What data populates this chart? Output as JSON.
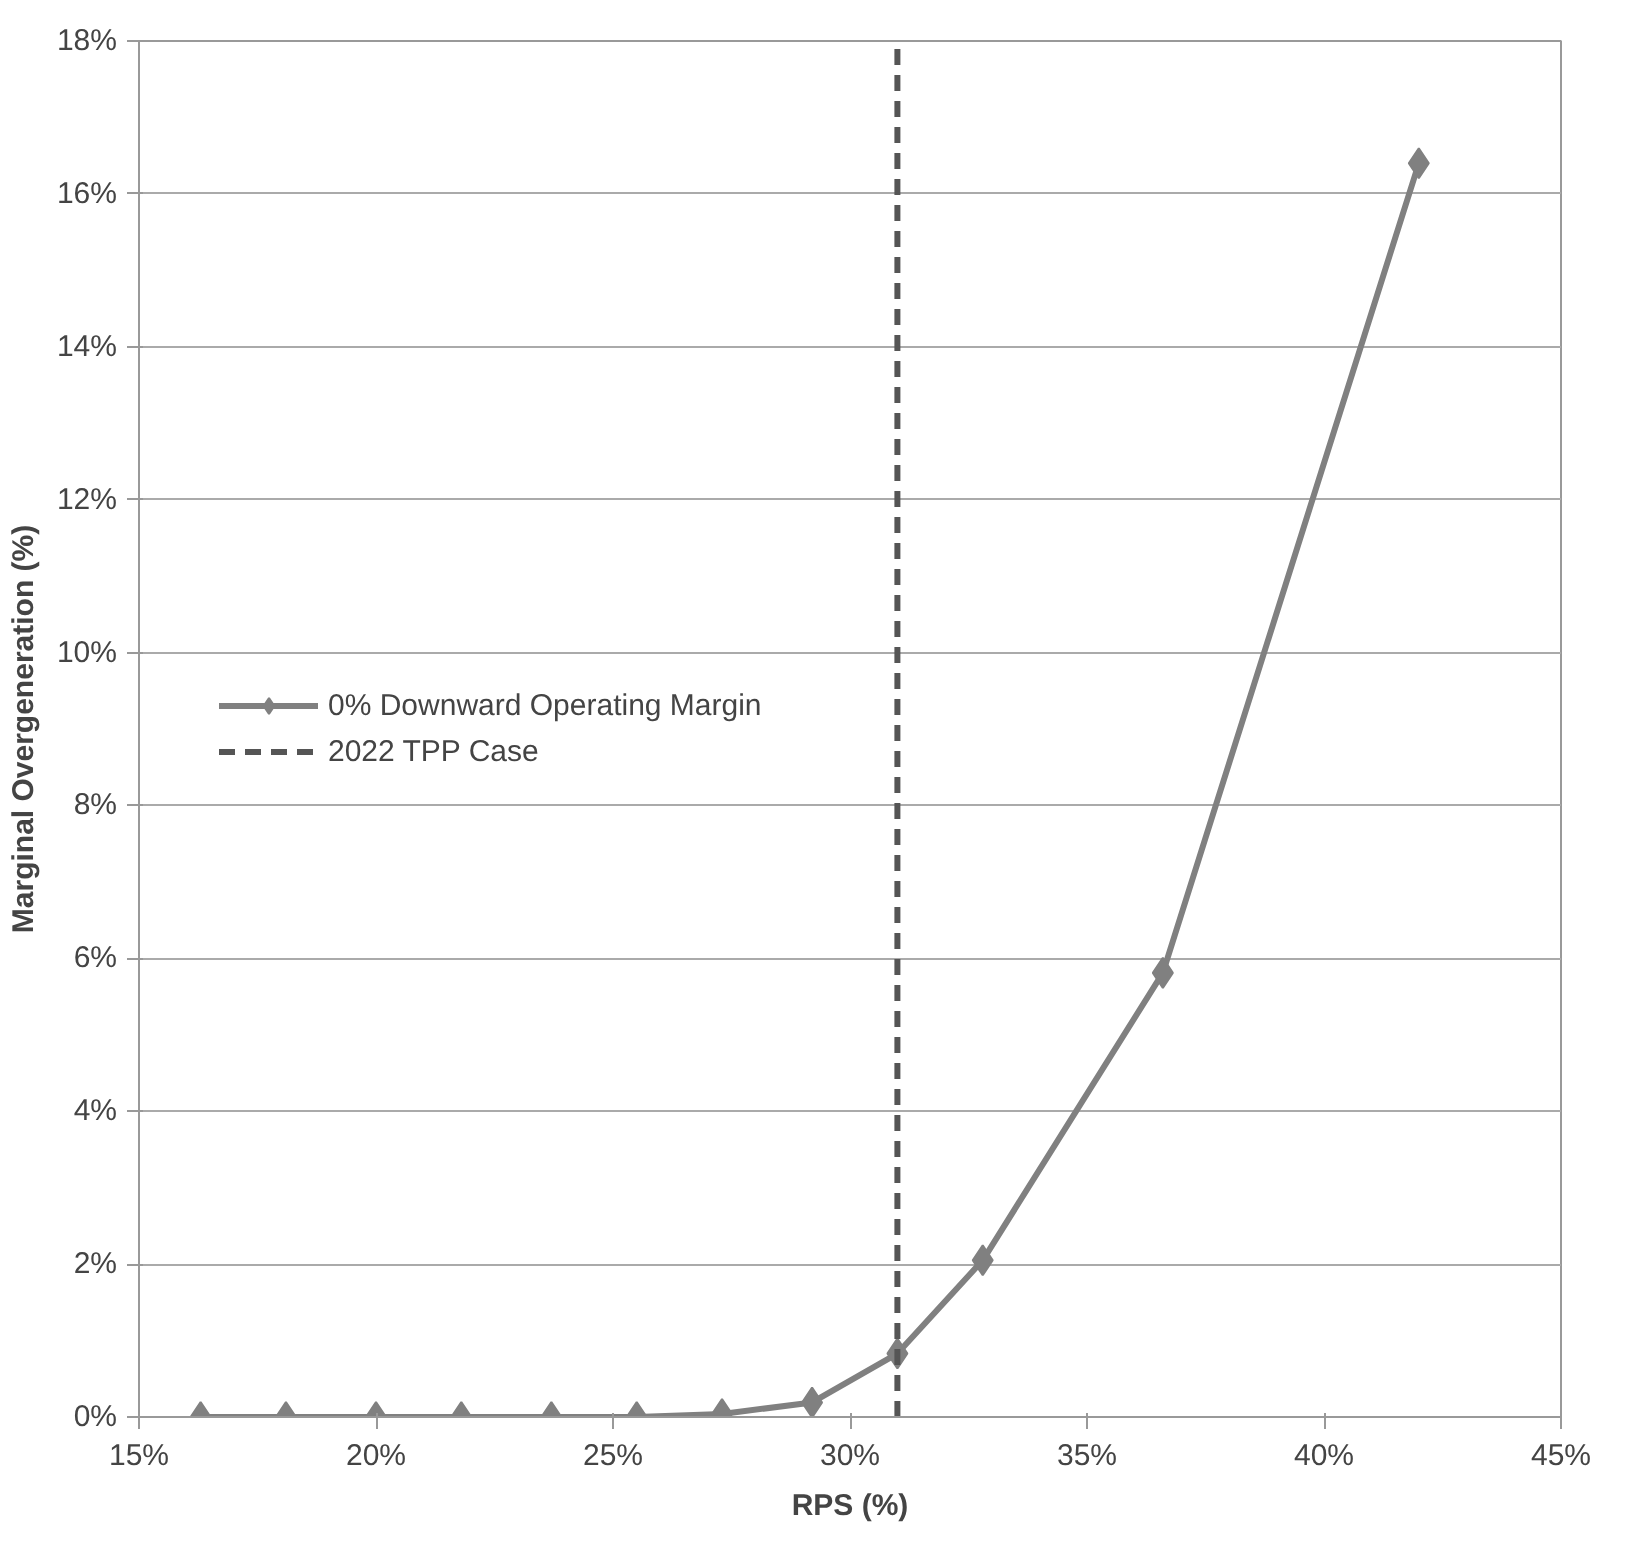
{
  "chart_data": {
    "type": "line",
    "xlabel": "RPS (%)",
    "ylabel": "Marginal Overgeneration (%)",
    "x": [
      16.3,
      18.1,
      20.0,
      21.8,
      23.7,
      25.5,
      27.3,
      29.2,
      31.0,
      32.8,
      36.6,
      42.0
    ],
    "series": [
      {
        "name": "0% Downward Operating Margin",
        "color": "#808080",
        "values": [
          0,
          0,
          0,
          0,
          0,
          0,
          0.04,
          0.19,
          0.83,
          2.05,
          5.81,
          16.4
        ]
      }
    ],
    "xlim": [
      15,
      45
    ],
    "xticks": [
      {
        "value": 15,
        "label": "15%"
      },
      {
        "value": 20,
        "label": "20%"
      },
      {
        "value": 25,
        "label": "25%"
      },
      {
        "value": 30,
        "label": "30%"
      },
      {
        "value": 35,
        "label": "35%"
      },
      {
        "value": 40,
        "label": "40%"
      },
      {
        "value": 45,
        "label": "45%"
      }
    ],
    "ylim": [
      0,
      18
    ],
    "yticks": [
      {
        "value": 0,
        "label": "0%"
      },
      {
        "value": 2,
        "label": "2%"
      },
      {
        "value": 4,
        "label": "4%"
      },
      {
        "value": 6,
        "label": "6%"
      },
      {
        "value": 8,
        "label": "8%"
      },
      {
        "value": 10,
        "label": "10%"
      },
      {
        "value": 12,
        "label": "12%"
      },
      {
        "value": 14,
        "label": "14%"
      },
      {
        "value": 16,
        "label": "16%"
      },
      {
        "value": 18,
        "label": "18%"
      }
    ],
    "ref_lines": [
      {
        "axis": "x",
        "value": 31.0,
        "label": "2022 TPP Case",
        "color": "#555555",
        "line_style": "dashed"
      }
    ],
    "grid": "y",
    "legend": "left",
    "marker": "diamond",
    "line_style": "solid"
  }
}
